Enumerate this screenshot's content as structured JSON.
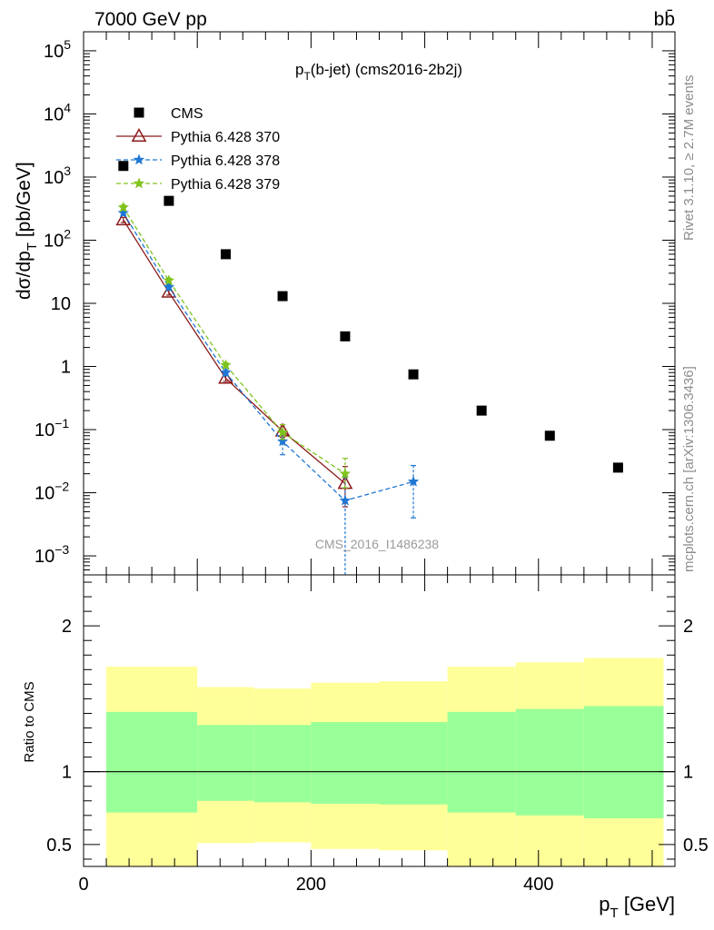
{
  "header": {
    "energy_label": "7000 GeV pp",
    "process_label": "bb̄"
  },
  "side_labels": {
    "rivet": "Rivet 3.1.10, ≥ 2.7M events",
    "mcplots": "mcplots.cern.ch [arXiv:1306.3436]"
  },
  "chart_data": [
    {
      "type": "scatter",
      "title_main": "p",
      "title_sub": "T",
      "title_rest": "(b-jet) (cms2016-2b2j)",
      "ylabel_main": "dσ/dp",
      "ylabel_sub": "T",
      "ylabel_rest": " [pb/GeV]",
      "xlim": [
        0,
        520
      ],
      "ylim": [
        0.0005,
        200000
      ],
      "log_y": true,
      "watermark": "CMS_2016_I1486238",
      "y_ticks": [
        {
          "v": 0.001,
          "m": "10",
          "e": "−3"
        },
        {
          "v": 0.01,
          "m": "10",
          "e": "−2"
        },
        {
          "v": 0.1,
          "m": "10",
          "e": "−1"
        },
        {
          "v": 1,
          "m": "1",
          "e": ""
        },
        {
          "v": 10,
          "m": "10",
          "e": ""
        },
        {
          "v": 100,
          "m": "10",
          "e": "2"
        },
        {
          "v": 1000,
          "m": "10",
          "e": "3"
        },
        {
          "v": 10000,
          "m": "10",
          "e": "4"
        },
        {
          "v": 100000,
          "m": "10",
          "e": "5"
        }
      ],
      "series": [
        {
          "name": "CMS",
          "color": "#000000",
          "marker": "square",
          "line": "none",
          "x": [
            35,
            75,
            125,
            175,
            230,
            290,
            350,
            410,
            470
          ],
          "y": [
            1500,
            420,
            60,
            13,
            3,
            0.75,
            0.2,
            0.08,
            0.025
          ]
        },
        {
          "name": "Pythia 6.428 370",
          "color": "#8b1a1a",
          "marker": "triangle",
          "line": "solid",
          "x": [
            35,
            75,
            125,
            175,
            230
          ],
          "y": [
            210,
            15,
            0.65,
            0.095,
            0.014
          ],
          "err_lo": [
            20,
            1.5,
            0.07,
            0.02,
            0.008
          ],
          "err_hi": [
            20,
            1.5,
            0.07,
            0.025,
            0.012
          ]
        },
        {
          "name": "Pythia 6.428 378",
          "color": "#1f77d4",
          "marker": "star",
          "line": "dashed",
          "x": [
            35,
            75,
            125,
            175,
            230,
            290
          ],
          "y": [
            270,
            18,
            0.8,
            0.065,
            0.0075,
            0.015
          ],
          "err_lo": [
            25,
            1.8,
            0.09,
            0.025,
            0.0072,
            0.011
          ],
          "err_hi": [
            25,
            1.8,
            0.09,
            0.03,
            0.01,
            0.012
          ]
        },
        {
          "name": "Pythia 6.428 379",
          "color": "#7fc31c",
          "marker": "star",
          "line": "dashed",
          "x": [
            35,
            75,
            125,
            175,
            230
          ],
          "y": [
            330,
            23,
            1.05,
            0.09,
            0.02
          ],
          "err_lo": [
            30,
            2,
            0.1,
            0.02,
            0.008
          ],
          "err_hi": [
            30,
            2,
            0.1,
            0.03,
            0.015
          ]
        }
      ]
    },
    {
      "type": "area",
      "ylabel": "Ratio to CMS",
      "xlabel_main": "p",
      "xlabel_sub": "T",
      "xlabel_rest": " [GeV]",
      "xlim": [
        0,
        520
      ],
      "ylim": [
        0.35,
        2.35
      ],
      "x_ticks": [
        0,
        200,
        400
      ],
      "y_ticks": [
        0.5,
        1,
        2
      ],
      "reference_line": 1,
      "bins": [
        {
          "x0": 20,
          "x1": 100,
          "yellow": [
            0,
            1.72
          ],
          "green": [
            0.72,
            1.41
          ]
        },
        {
          "x0": 100,
          "x1": 150,
          "yellow": [
            0.51,
            1.58
          ],
          "green": [
            0.8,
            1.32
          ]
        },
        {
          "x0": 150,
          "x1": 200,
          "yellow": [
            0.515,
            1.57
          ],
          "green": [
            0.79,
            1.32
          ]
        },
        {
          "x0": 200,
          "x1": 260,
          "yellow": [
            0.47,
            1.61
          ],
          "green": [
            0.78,
            1.34
          ]
        },
        {
          "x0": 260,
          "x1": 320,
          "yellow": [
            0.46,
            1.62
          ],
          "green": [
            0.775,
            1.34
          ]
        },
        {
          "x0": 320,
          "x1": 380,
          "yellow": [
            0,
            1.72
          ],
          "green": [
            0.72,
            1.41
          ]
        },
        {
          "x0": 380,
          "x1": 440,
          "yellow": [
            0,
            1.75
          ],
          "green": [
            0.7,
            1.43
          ]
        },
        {
          "x0": 440,
          "x1": 510,
          "yellow": [
            0,
            1.78
          ],
          "green": [
            0.68,
            1.45
          ]
        }
      ],
      "colors": {
        "yellow": "#ffff99",
        "green": "#99ff99"
      }
    }
  ]
}
